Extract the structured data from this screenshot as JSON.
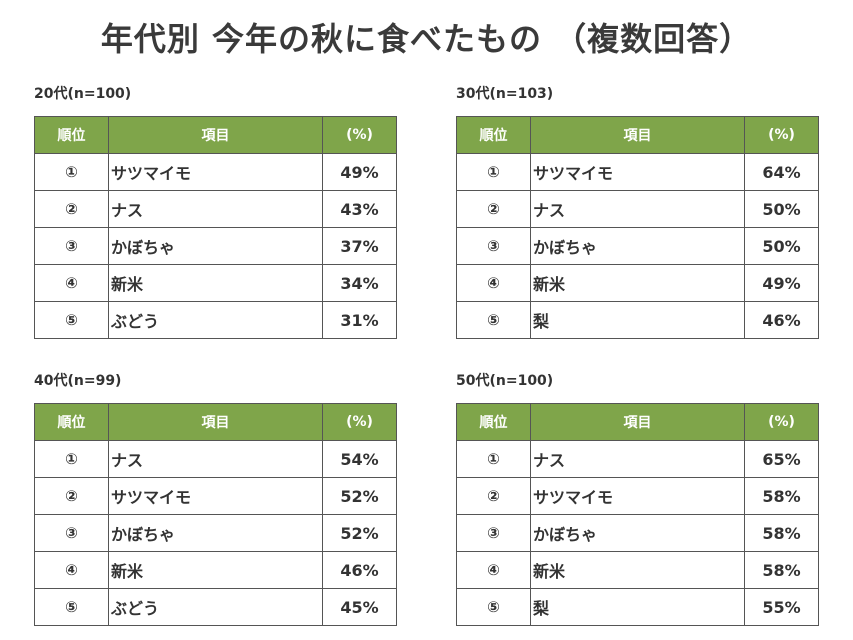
{
  "title": "年代別 今年の秋に食べたもの （複数回答）",
  "colors": {
    "header_bg": "#7fa54a",
    "header_text": "#ffffff",
    "border": "#555555"
  },
  "chart_data": [
    {
      "type": "table",
      "caption": "20代(n=100)",
      "columns": [
        "順位",
        "項目",
        "(%)"
      ],
      "rows": [
        {
          "rank": "①",
          "item": "サツマイモ",
          "pct": "49%",
          "value": 49
        },
        {
          "rank": "②",
          "item": "ナス",
          "pct": "43%",
          "value": 43
        },
        {
          "rank": "③",
          "item": "かぼちゃ",
          "pct": "37%",
          "value": 37
        },
        {
          "rank": "④",
          "item": "新米",
          "pct": "34%",
          "value": 34
        },
        {
          "rank": "⑤",
          "item": "ぶどう",
          "pct": "31%",
          "value": 31
        }
      ]
    },
    {
      "type": "table",
      "caption": "30代(n=103)",
      "columns": [
        "順位",
        "項目",
        "(%)"
      ],
      "rows": [
        {
          "rank": "①",
          "item": "サツマイモ",
          "pct": "64%",
          "value": 64
        },
        {
          "rank": "②",
          "item": "ナス",
          "pct": "50%",
          "value": 50
        },
        {
          "rank": "③",
          "item": "かぼちゃ",
          "pct": "50%",
          "value": 50
        },
        {
          "rank": "④",
          "item": "新米",
          "pct": "49%",
          "value": 49
        },
        {
          "rank": "⑤",
          "item": "梨",
          "pct": "46%",
          "value": 46
        }
      ]
    },
    {
      "type": "table",
      "caption": "40代(n=99)",
      "columns": [
        "順位",
        "項目",
        "(%)"
      ],
      "rows": [
        {
          "rank": "①",
          "item": "ナス",
          "pct": "54%",
          "value": 54
        },
        {
          "rank": "②",
          "item": "サツマイモ",
          "pct": "52%",
          "value": 52
        },
        {
          "rank": "③",
          "item": "かぼちゃ",
          "pct": "52%",
          "value": 52
        },
        {
          "rank": "④",
          "item": "新米",
          "pct": "46%",
          "value": 46
        },
        {
          "rank": "⑤",
          "item": "ぶどう",
          "pct": "45%",
          "value": 45
        }
      ]
    },
    {
      "type": "table",
      "caption": "50代(n=100)",
      "columns": [
        "順位",
        "項目",
        "(%)"
      ],
      "rows": [
        {
          "rank": "①",
          "item": "ナス",
          "pct": "65%",
          "value": 65
        },
        {
          "rank": "②",
          "item": "サツマイモ",
          "pct": "58%",
          "value": 58
        },
        {
          "rank": "③",
          "item": "かぼちゃ",
          "pct": "58%",
          "value": 58
        },
        {
          "rank": "④",
          "item": "新米",
          "pct": "58%",
          "value": 58
        },
        {
          "rank": "⑤",
          "item": "梨",
          "pct": "55%",
          "value": 55
        }
      ]
    }
  ]
}
